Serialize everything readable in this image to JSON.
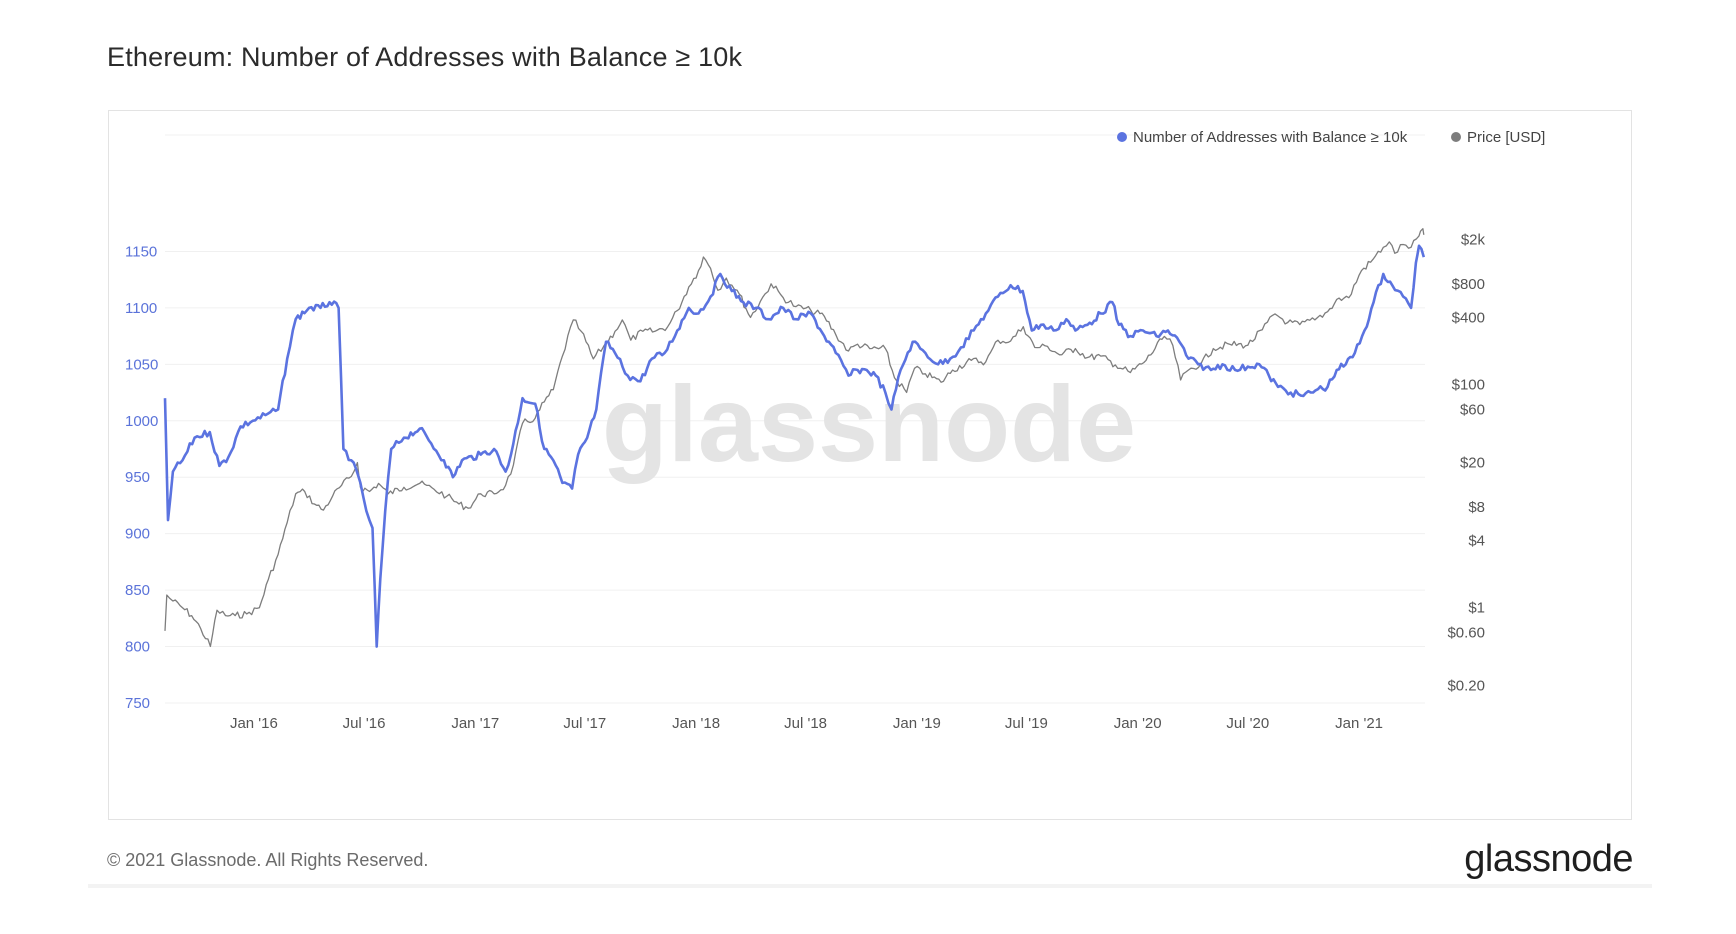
{
  "page": {
    "copyright": "© 2021 Glassnode. All Rights Reserved.",
    "logo": "glassnode",
    "watermark": "glassnode"
  },
  "chart_data": {
    "type": "line",
    "title": "Ethereum: Number of Addresses with Balance ≥ 10k",
    "legend_position": "top-right",
    "grid": "horizontal",
    "x_ticks": [
      "Jan '16",
      "Jul '16",
      "Jan '17",
      "Jul '17",
      "Jan '18",
      "Jul '18",
      "Jan '19",
      "Jul '19",
      "Jan '20",
      "Jul '20",
      "Jan '21"
    ],
    "x_tick_dates": [
      "2016-01-01",
      "2016-07-01",
      "2017-01-01",
      "2017-07-01",
      "2018-01-01",
      "2018-07-01",
      "2019-01-01",
      "2019-07-01",
      "2020-01-01",
      "2020-07-01",
      "2021-01-01"
    ],
    "xlim": [
      "2015-08-07",
      "2021-04-20"
    ],
    "y_left": {
      "lim": [
        750,
        1200
      ],
      "ticks": [
        750,
        800,
        850,
        900,
        950,
        1000,
        1050,
        1100,
        1150
      ],
      "color": "#5b73d9"
    },
    "y_right": {
      "scale": "log",
      "lim": [
        0.14,
        5000
      ],
      "ticks": [
        {
          "value": 0.2,
          "label": "$0.20"
        },
        {
          "value": 0.6,
          "label": "$0.60"
        },
        {
          "value": 1,
          "label": "$1"
        },
        {
          "value": 4,
          "label": "$4"
        },
        {
          "value": 8,
          "label": "$8"
        },
        {
          "value": 20,
          "label": "$20"
        },
        {
          "value": 60,
          "label": "$60"
        },
        {
          "value": 100,
          "label": "$100"
        },
        {
          "value": 400,
          "label": "$400"
        },
        {
          "value": 800,
          "label": "$800"
        },
        {
          "value": 2000,
          "label": "$2k"
        }
      ]
    },
    "series": [
      {
        "name": "Number of Addresses with Balance ≥ 10k",
        "axis": "left",
        "color": "#5b73e0",
        "points": [
          [
            "2015-08-07",
            1020
          ],
          [
            "2015-08-12",
            912
          ],
          [
            "2015-08-20",
            955
          ],
          [
            "2015-09-05",
            965
          ],
          [
            "2015-09-25",
            985
          ],
          [
            "2015-10-20",
            990
          ],
          [
            "2015-11-05",
            960
          ],
          [
            "2015-11-20",
            968
          ],
          [
            "2015-12-10",
            995
          ],
          [
            "2015-12-30",
            1000
          ],
          [
            "2016-01-20",
            1005
          ],
          [
            "2016-02-10",
            1010
          ],
          [
            "2016-02-25",
            1055
          ],
          [
            "2016-03-10",
            1090
          ],
          [
            "2016-04-01",
            1100
          ],
          [
            "2016-04-20",
            1100
          ],
          [
            "2016-05-05",
            1105
          ],
          [
            "2016-05-20",
            1100
          ],
          [
            "2016-05-28",
            975
          ],
          [
            "2016-06-10",
            965
          ],
          [
            "2016-06-25",
            945
          ],
          [
            "2016-07-05",
            920
          ],
          [
            "2016-07-15",
            905
          ],
          [
            "2016-07-22",
            800
          ],
          [
            "2016-07-28",
            860
          ],
          [
            "2016-08-05",
            920
          ],
          [
            "2016-08-15",
            975
          ],
          [
            "2016-09-05",
            985
          ],
          [
            "2016-10-01",
            993
          ],
          [
            "2016-10-20",
            980
          ],
          [
            "2016-11-10",
            965
          ],
          [
            "2016-11-25",
            950
          ],
          [
            "2016-12-10",
            965
          ],
          [
            "2017-01-10",
            970
          ],
          [
            "2017-02-01",
            975
          ],
          [
            "2017-02-20",
            955
          ],
          [
            "2017-03-01",
            970
          ],
          [
            "2017-03-20",
            1020
          ],
          [
            "2017-04-10",
            1015
          ],
          [
            "2017-04-25",
            975
          ],
          [
            "2017-05-10",
            965
          ],
          [
            "2017-05-25",
            945
          ],
          [
            "2017-06-10",
            940
          ],
          [
            "2017-06-20",
            970
          ],
          [
            "2017-07-05",
            985
          ],
          [
            "2017-07-20",
            1010
          ],
          [
            "2017-08-05",
            1070
          ],
          [
            "2017-08-20",
            1060
          ],
          [
            "2017-09-10",
            1040
          ],
          [
            "2017-10-01",
            1035
          ],
          [
            "2017-10-20",
            1055
          ],
          [
            "2017-11-10",
            1060
          ],
          [
            "2017-12-01",
            1080
          ],
          [
            "2017-12-20",
            1100
          ],
          [
            "2018-01-05",
            1095
          ],
          [
            "2018-01-25",
            1110
          ],
          [
            "2018-02-10",
            1130
          ],
          [
            "2018-03-01",
            1115
          ],
          [
            "2018-03-20",
            1105
          ],
          [
            "2018-04-10",
            1100
          ],
          [
            "2018-05-01",
            1090
          ],
          [
            "2018-05-25",
            1100
          ],
          [
            "2018-06-15",
            1090
          ],
          [
            "2018-07-10",
            1095
          ],
          [
            "2018-08-01",
            1075
          ],
          [
            "2018-08-20",
            1060
          ],
          [
            "2018-09-10",
            1040
          ],
          [
            "2018-09-25",
            1045
          ],
          [
            "2018-10-10",
            1045
          ],
          [
            "2018-10-25",
            1040
          ],
          [
            "2018-11-10",
            1025
          ],
          [
            "2018-11-20",
            1010
          ],
          [
            "2018-12-05",
            1045
          ],
          [
            "2018-12-25",
            1070
          ],
          [
            "2019-01-15",
            1060
          ],
          [
            "2019-02-05",
            1050
          ],
          [
            "2019-02-25",
            1055
          ],
          [
            "2019-03-15",
            1065
          ],
          [
            "2019-04-05",
            1080
          ],
          [
            "2019-04-25",
            1095
          ],
          [
            "2019-05-15",
            1110
          ],
          [
            "2019-06-05",
            1120
          ],
          [
            "2019-06-25",
            1115
          ],
          [
            "2019-07-10",
            1080
          ],
          [
            "2019-07-25",
            1085
          ],
          [
            "2019-08-15",
            1080
          ],
          [
            "2019-09-05",
            1090
          ],
          [
            "2019-09-20",
            1080
          ],
          [
            "2019-10-10",
            1085
          ],
          [
            "2019-11-01",
            1095
          ],
          [
            "2019-11-20",
            1105
          ],
          [
            "2019-12-01",
            1085
          ],
          [
            "2019-12-20",
            1075
          ],
          [
            "2020-01-10",
            1080
          ],
          [
            "2020-02-01",
            1075
          ],
          [
            "2020-02-20",
            1080
          ],
          [
            "2020-03-10",
            1070
          ],
          [
            "2020-03-25",
            1055
          ],
          [
            "2020-04-10",
            1050
          ],
          [
            "2020-05-01",
            1045
          ],
          [
            "2020-05-20",
            1050
          ],
          [
            "2020-06-10",
            1045
          ],
          [
            "2020-07-01",
            1048
          ],
          [
            "2020-07-20",
            1050
          ],
          [
            "2020-08-05",
            1040
          ],
          [
            "2020-08-20",
            1030
          ],
          [
            "2020-09-10",
            1025
          ],
          [
            "2020-10-01",
            1022
          ],
          [
            "2020-10-25",
            1028
          ],
          [
            "2020-11-10",
            1030
          ],
          [
            "2020-11-25",
            1045
          ],
          [
            "2020-12-10",
            1050
          ],
          [
            "2020-12-25",
            1060
          ],
          [
            "2021-01-10",
            1080
          ],
          [
            "2021-01-25",
            1105
          ],
          [
            "2021-02-10",
            1130
          ],
          [
            "2021-02-25",
            1120
          ],
          [
            "2021-03-15",
            1110
          ],
          [
            "2021-03-28",
            1100
          ],
          [
            "2021-04-05",
            1140
          ],
          [
            "2021-04-10",
            1155
          ],
          [
            "2021-04-18",
            1145
          ]
        ]
      },
      {
        "name": "Price [USD]",
        "axis": "right",
        "color": "#7d7d7d",
        "points": [
          [
            "2015-08-07",
            0.62
          ],
          [
            "2015-08-10",
            1.3
          ],
          [
            "2015-08-20",
            1.15
          ],
          [
            "2015-09-05",
            1.0
          ],
          [
            "2015-09-20",
            0.85
          ],
          [
            "2015-10-05",
            0.65
          ],
          [
            "2015-10-21",
            0.45
          ],
          [
            "2015-11-01",
            0.95
          ],
          [
            "2015-11-15",
            0.85
          ],
          [
            "2015-12-01",
            0.85
          ],
          [
            "2015-12-20",
            0.88
          ],
          [
            "2016-01-10",
            1.0
          ],
          [
            "2016-01-25",
            1.8
          ],
          [
            "2016-02-10",
            3.0
          ],
          [
            "2016-02-25",
            5.8
          ],
          [
            "2016-03-10",
            10.5
          ],
          [
            "2016-03-25",
            11.0
          ],
          [
            "2016-04-10",
            8.5
          ],
          [
            "2016-04-25",
            7.5
          ],
          [
            "2016-05-10",
            10.0
          ],
          [
            "2016-05-25",
            12.5
          ],
          [
            "2016-06-10",
            15.0
          ],
          [
            "2016-06-20",
            20.0
          ],
          [
            "2016-06-25",
            12.0
          ],
          [
            "2016-07-10",
            11.0
          ],
          [
            "2016-07-25",
            13.0
          ],
          [
            "2016-08-10",
            10.5
          ],
          [
            "2016-09-05",
            12.0
          ],
          [
            "2016-10-01",
            13.0
          ],
          [
            "2016-10-25",
            11.5
          ],
          [
            "2016-11-15",
            10.0
          ],
          [
            "2016-12-05",
            8.5
          ],
          [
            "2016-12-20",
            7.8
          ],
          [
            "2017-01-10",
            10.5
          ],
          [
            "2017-02-01",
            10.5
          ],
          [
            "2017-02-20",
            12.5
          ],
          [
            "2017-03-05",
            19.0
          ],
          [
            "2017-03-20",
            45.0
          ],
          [
            "2017-04-10",
            50.0
          ],
          [
            "2017-04-25",
            70.0
          ],
          [
            "2017-05-10",
            90.0
          ],
          [
            "2017-05-25",
            180.0
          ],
          [
            "2017-06-12",
            380.0
          ],
          [
            "2017-06-25",
            300.0
          ],
          [
            "2017-07-15",
            170.0
          ],
          [
            "2017-08-01",
            220.0
          ],
          [
            "2017-08-20",
            300.0
          ],
          [
            "2017-09-01",
            380.0
          ],
          [
            "2017-09-15",
            250.0
          ],
          [
            "2017-10-05",
            300.0
          ],
          [
            "2017-10-25",
            300.0
          ],
          [
            "2017-11-15",
            330.0
          ],
          [
            "2017-12-01",
            460.0
          ],
          [
            "2017-12-20",
            750.0
          ],
          [
            "2018-01-05",
            1050.0
          ],
          [
            "2018-01-13",
            1390.0
          ],
          [
            "2018-01-25",
            1100.0
          ],
          [
            "2018-02-06",
            700.0
          ],
          [
            "2018-02-20",
            900.0
          ],
          [
            "2018-03-10",
            700.0
          ],
          [
            "2018-04-01",
            400.0
          ],
          [
            "2018-04-25",
            650.0
          ],
          [
            "2018-05-05",
            800.0
          ],
          [
            "2018-05-25",
            600.0
          ],
          [
            "2018-06-15",
            500.0
          ],
          [
            "2018-07-10",
            460.0
          ],
          [
            "2018-08-01",
            410.0
          ],
          [
            "2018-08-20",
            280.0
          ],
          [
            "2018-09-10",
            200.0
          ],
          [
            "2018-09-25",
            230.0
          ],
          [
            "2018-10-15",
            210.0
          ],
          [
            "2018-11-10",
            210.0
          ],
          [
            "2018-11-25",
            115.0
          ],
          [
            "2018-12-15",
            85.0
          ],
          [
            "2018-12-28",
            140.0
          ],
          [
            "2019-01-15",
            125.0
          ],
          [
            "2019-02-10",
            105.0
          ],
          [
            "2019-03-01",
            135.0
          ],
          [
            "2019-04-01",
            165.0
          ],
          [
            "2019-04-25",
            160.0
          ],
          [
            "2019-05-15",
            250.0
          ],
          [
            "2019-06-05",
            245.0
          ],
          [
            "2019-06-26",
            330.0
          ],
          [
            "2019-07-15",
            215.0
          ],
          [
            "2019-08-05",
            220.0
          ],
          [
            "2019-08-25",
            185.0
          ],
          [
            "2019-09-20",
            210.0
          ],
          [
            "2019-10-10",
            175.0
          ],
          [
            "2019-11-01",
            180.0
          ],
          [
            "2019-11-25",
            150.0
          ],
          [
            "2019-12-20",
            128.0
          ],
          [
            "2020-01-15",
            165.0
          ],
          [
            "2020-02-14",
            270.0
          ],
          [
            "2020-02-28",
            225.0
          ],
          [
            "2020-03-12",
            110.0
          ],
          [
            "2020-03-25",
            135.0
          ],
          [
            "2020-04-15",
            155.0
          ],
          [
            "2020-05-05",
            210.0
          ],
          [
            "2020-06-01",
            230.0
          ],
          [
            "2020-07-01",
            225.0
          ],
          [
            "2020-07-25",
            310.0
          ],
          [
            "2020-08-15",
            430.0
          ],
          [
            "2020-09-05",
            360.0
          ],
          [
            "2020-09-25",
            345.0
          ],
          [
            "2020-10-20",
            380.0
          ],
          [
            "2020-11-10",
            450.0
          ],
          [
            "2020-11-25",
            580.0
          ],
          [
            "2020-12-15",
            600.0
          ],
          [
            "2021-01-05",
            1050.0
          ],
          [
            "2021-01-20",
            1250.0
          ],
          [
            "2021-02-10",
            1700.0
          ],
          [
            "2021-02-20",
            1900.0
          ],
          [
            "2021-03-01",
            1500.0
          ],
          [
            "2021-03-15",
            1800.0
          ],
          [
            "2021-03-28",
            1700.0
          ],
          [
            "2021-04-10",
            2150.0
          ],
          [
            "2021-04-15",
            2450.0
          ],
          [
            "2021-04-18",
            2200.0
          ]
        ]
      }
    ]
  }
}
